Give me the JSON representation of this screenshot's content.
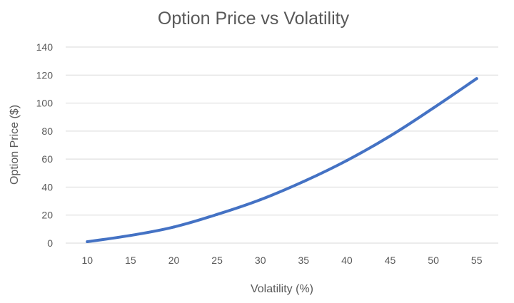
{
  "chart_data": {
    "type": "line",
    "title": "Option Price vs Volatility",
    "xlabel": "Volatility (%)",
    "ylabel": "Option Price ($)",
    "x": [
      10,
      15,
      20,
      25,
      30,
      35,
      40,
      45,
      50,
      55
    ],
    "series": [
      {
        "name": "Option Price",
        "values": [
          1,
          5.5,
          11.5,
          20.5,
          31,
          44,
          59,
          76.5,
          96.5,
          117.5
        ],
        "color": "#4472c4"
      }
    ],
    "ylim": [
      0,
      140
    ],
    "yticks": [
      0,
      20,
      40,
      60,
      80,
      100,
      120,
      140
    ],
    "grid": true,
    "legend": "none"
  }
}
